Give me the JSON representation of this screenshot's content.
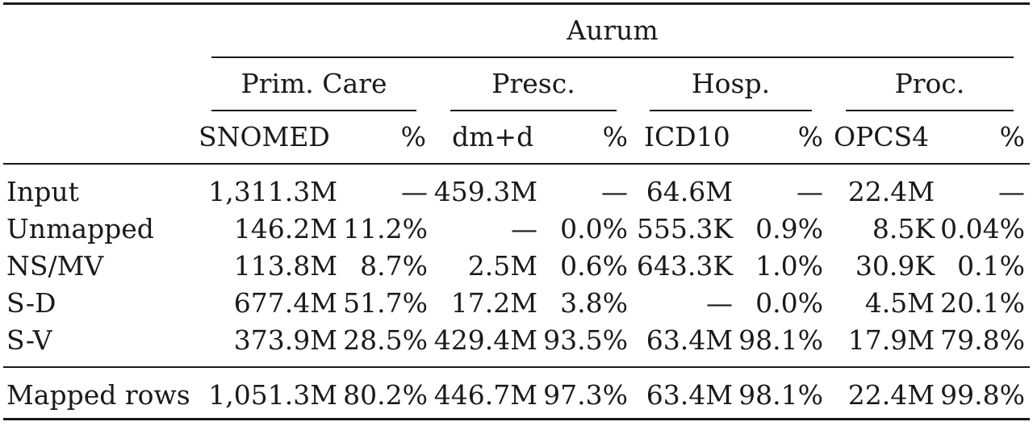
{
  "table": {
    "supergroup": "Aurum",
    "groups": [
      {
        "label": "Prim. Care",
        "code_header": "SNOMED",
        "pct_header": "%"
      },
      {
        "label": "Presc.",
        "code_header": "dm+d",
        "pct_header": "%"
      },
      {
        "label": "Hosp.",
        "code_header": "ICD10",
        "pct_header": "%"
      },
      {
        "label": "Proc.",
        "code_header": "OPCS4",
        "pct_header": "%"
      }
    ],
    "rows": [
      {
        "label": "Input",
        "cells": [
          "1,311.3M",
          "—",
          "459.3M",
          "—",
          "64.6M",
          "—",
          "22.4M",
          "—"
        ]
      },
      {
        "label": "Unmapped",
        "cells": [
          "146.2M",
          "11.2%",
          "—",
          "0.0%",
          "555.3K",
          "0.9%",
          "8.5K",
          "0.04%"
        ]
      },
      {
        "label": "NS/MV",
        "cells": [
          "113.8M",
          "8.7%",
          "2.5M",
          "0.6%",
          "643.3K",
          "1.0%",
          "30.9K",
          "0.1%"
        ]
      },
      {
        "label": "S-D",
        "cells": [
          "677.4M",
          "51.7%",
          "17.2M",
          "3.8%",
          "—",
          "0.0%",
          "4.5M",
          "20.1%"
        ]
      },
      {
        "label": "S-V",
        "cells": [
          "373.9M",
          "28.5%",
          "429.4M",
          "93.5%",
          "63.4M",
          "98.1%",
          "17.9M",
          "79.8%"
        ]
      }
    ],
    "total_row": {
      "label": "Mapped rows",
      "cells": [
        "1,051.3M",
        "80.2%",
        "446.7M",
        "97.3%",
        "63.4M",
        "98.1%",
        "22.4M",
        "99.8%"
      ]
    }
  }
}
